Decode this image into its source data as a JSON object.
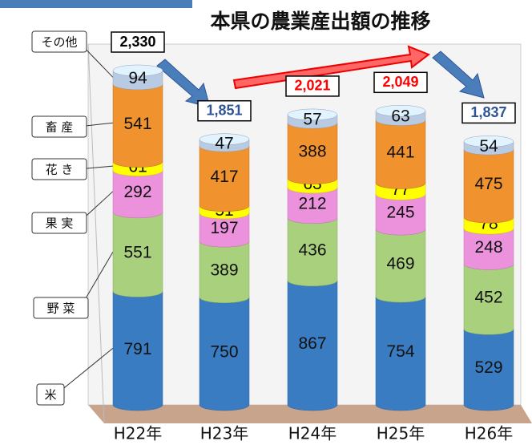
{
  "chart_data": {
    "type": "stacked-cylinder",
    "title": "本県の農業産出額の推移",
    "categories": [
      "H22年",
      "H23年",
      "H24年",
      "H25年",
      "H26年"
    ],
    "series": [
      {
        "name": "米",
        "color": "#3a7cc2",
        "values": [
          791,
          750,
          867,
          754,
          529
        ]
      },
      {
        "name": "野 菜",
        "color": "#a9d07c",
        "values": [
          551,
          389,
          436,
          469,
          452
        ]
      },
      {
        "name": "果 実",
        "color": "#ec92dc",
        "values": [
          292,
          197,
          212,
          245,
          248
        ]
      },
      {
        "name": "花 き",
        "color": "#ffff00",
        "values": [
          61,
          51,
          63,
          77,
          78
        ]
      },
      {
        "name": "畜 産",
        "color": "#f0922e",
        "values": [
          541,
          417,
          388,
          441,
          475
        ]
      },
      {
        "name": "その他",
        "color": "#b9cbe2",
        "values": [
          94,
          47,
          57,
          63,
          54
        ]
      }
    ],
    "totals": [
      {
        "value": 2330,
        "label": "2,330"
      },
      {
        "value": 1851,
        "label": "1,851"
      },
      {
        "value": 2021,
        "label": "2,021"
      },
      {
        "value": 2049,
        "label": "2,049"
      },
      {
        "value": 1837,
        "label": "1,837"
      }
    ],
    "total_colors": [
      "#000000",
      "#2f5597",
      "#ff0000",
      "#ff0000",
      "#2f5597"
    ]
  }
}
